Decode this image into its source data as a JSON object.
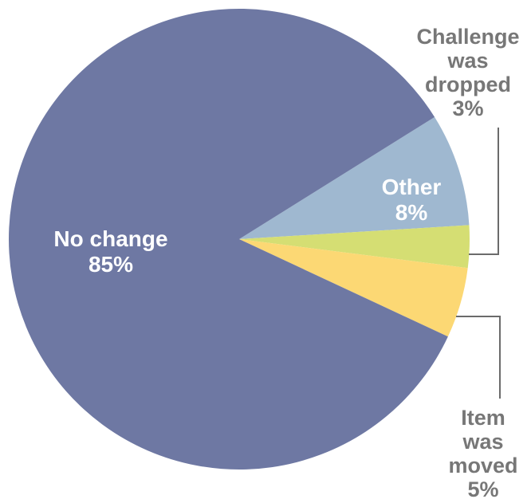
{
  "chart_data": {
    "type": "pie",
    "title": "",
    "slices": [
      {
        "label": "Other",
        "value": 8,
        "label_lines": [
          "Other"
        ],
        "value_text": "8%",
        "color": "#9fb8d0",
        "label_color": "#ffffff"
      },
      {
        "label": "Challenge was dropped",
        "value": 3,
        "label_lines": [
          "Challenge",
          "was",
          "dropped"
        ],
        "value_text": "3%",
        "color": "#d5de73",
        "label_color": "#777777"
      },
      {
        "label": "Item was moved",
        "value": 5,
        "label_lines": [
          "Item",
          "was",
          "moved"
        ],
        "value_text": "5%",
        "color": "#fcd874",
        "label_color": "#777777"
      },
      {
        "label": "No change",
        "value": 85,
        "label_lines": [
          "No change"
        ],
        "value_text": "85%",
        "color": "#6e78a3",
        "label_color": "#ffffff"
      }
    ]
  }
}
